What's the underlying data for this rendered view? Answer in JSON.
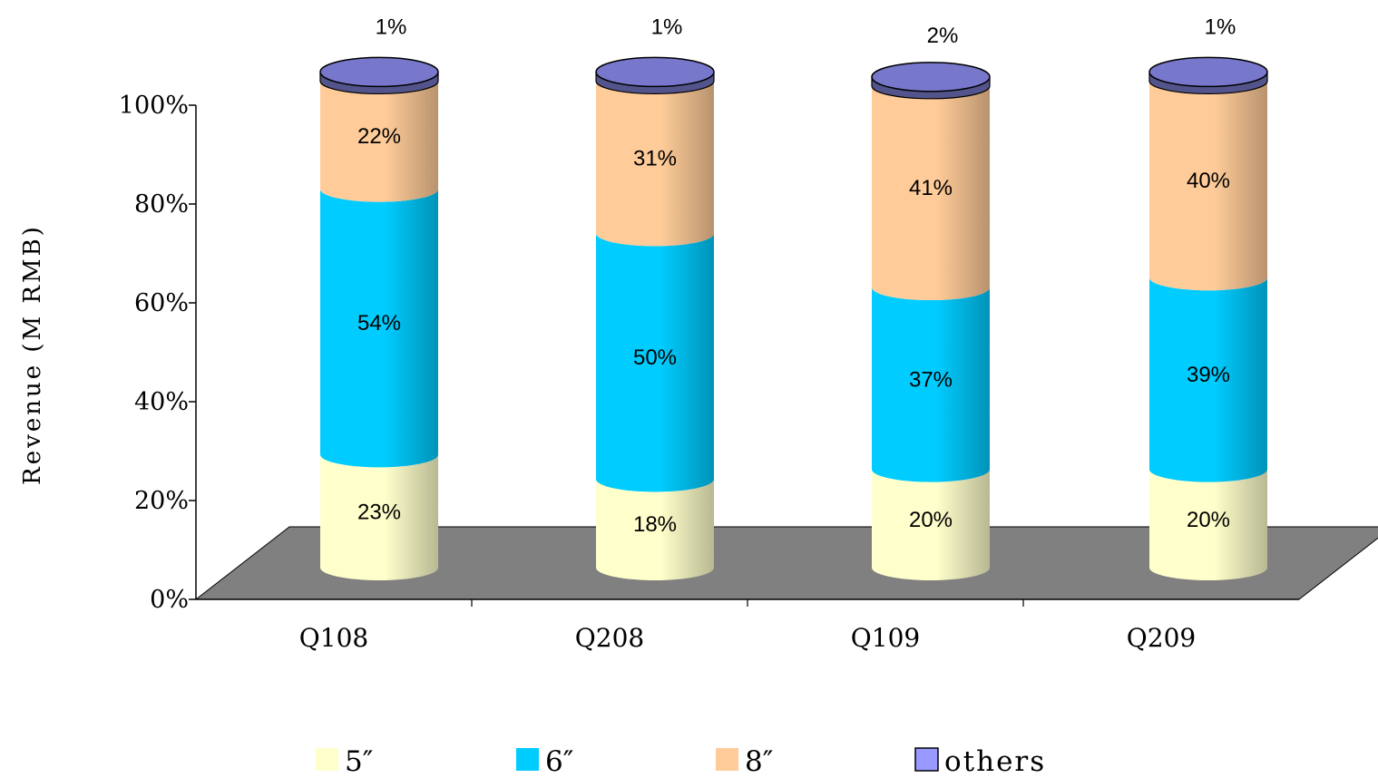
{
  "chart_data": {
    "type": "bar",
    "stacked": true,
    "normalized_percent": true,
    "style": "3d-cylinder",
    "ylabel": "Revenue (M RMB)",
    "xlabel": "",
    "ylim": [
      0,
      100
    ],
    "yticks": [
      "0%",
      "20%",
      "40%",
      "60%",
      "80%",
      "100%"
    ],
    "categories": [
      "Q108",
      "Q208",
      "Q109",
      "Q209"
    ],
    "series": [
      {
        "name": "5″",
        "color": "#ffffcc",
        "values": [
          23,
          18,
          20,
          20
        ],
        "labels": [
          "23%",
          "18%",
          "20%",
          "20%"
        ]
      },
      {
        "name": "6″",
        "color": "#00ccff",
        "values": [
          54,
          50,
          37,
          39
        ],
        "labels": [
          "54%",
          "50%",
          "37%",
          "39%"
        ]
      },
      {
        "name": "8″",
        "color": "#ffcc99",
        "values": [
          22,
          31,
          41,
          40
        ],
        "labels": [
          "22%",
          "31%",
          "41%",
          "40%"
        ]
      },
      {
        "name": "others",
        "color": "#9999ff",
        "values": [
          1,
          1,
          2,
          1
        ],
        "labels": [
          "1%",
          "1%",
          "2%",
          "1%"
        ]
      }
    ],
    "legend_position": "bottom",
    "floor_color": "#808080",
    "grid": false
  }
}
